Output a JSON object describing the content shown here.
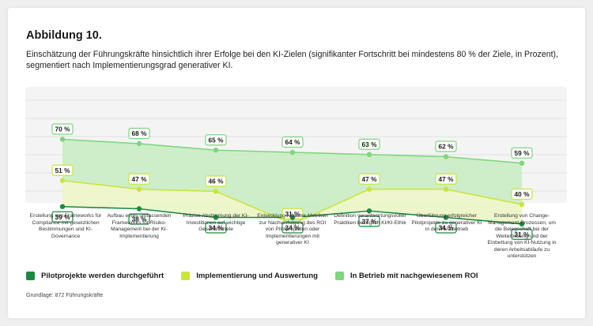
{
  "figure": {
    "title": "Abbildung 10.",
    "subtitle": "Einschätzung der Führungskräfte hinsichtlich ihrer Erfolge bei den KI-Zielen (signifikanter Fortschritt bei mindestens 80 % der Ziele, in Prozent), segmentiert nach Implementierungsgrad generativer KI.",
    "footnote": "Grundlage: 872 Führungskräfte"
  },
  "chart_data": {
    "type": "line",
    "categories": [
      "Erstellung von Frameworks für Compliance mit gesetzlichen Bestimmungen und KI-Governance",
      "Aufbau eines umfassenden Frameworks für Risiko-Management bei der KI-Implementierung",
      "Präzise Abstimmung der KI-Investitionen auf wichtige Geschäftsziele",
      "Entwicklung robuster Metriken zur Nachverfolgung des ROI von Pilotprojekten oder Implementierungen mit generativer KI",
      "Definition verantwortungsvoller Praktiken bezüglich KI/KI-Ethik",
      "Überführung erfolgreicher Pilotprojekte zu generativer KI in den Realbetrieb",
      "Erstellung von Change-Management-Prozessen, um die Belegschaft bei der Weiterbildung und der Einbettung von KI-Nutzung in deren Arbeitsabläufe zu unterstützen"
    ],
    "series": [
      {
        "name": "In Betrieb mit nachgewiesenem ROI",
        "color": "#7ed67e",
        "values": [
          70,
          68,
          65,
          64,
          63,
          62,
          59
        ],
        "labels": [
          "70 %",
          "68 %",
          "65 %",
          "64 %",
          "63 %",
          "62 %",
          "59 %"
        ]
      },
      {
        "name": "Implementierung und Auswertung",
        "color": "#c8e639",
        "values": [
          51,
          47,
          46,
          31,
          47,
          47,
          40
        ],
        "labels": [
          "51 %",
          "47 %",
          "46 %",
          "31 %",
          "47 %",
          "47 %",
          "40 %"
        ]
      },
      {
        "name": "Pilotprojekte werden durchgeführt",
        "color": "#1a8a3f",
        "values": [
          39,
          38,
          34,
          34,
          37,
          34,
          31
        ],
        "labels": [
          "39 %",
          "38 %",
          "34 %",
          "34 %",
          "37 %",
          "34 %",
          "31 %"
        ]
      }
    ],
    "ylim": [
      0,
      100
    ],
    "grid": true,
    "legend_position": "bottom",
    "legend": [
      {
        "name": "Pilotprojekte werden durchgeführt",
        "color": "#1a8a3f"
      },
      {
        "name": "Implementierung und Auswertung",
        "color": "#c8e639"
      },
      {
        "name": "In Betrieb mit nachgewiesenem ROI",
        "color": "#7ed67e"
      }
    ]
  }
}
